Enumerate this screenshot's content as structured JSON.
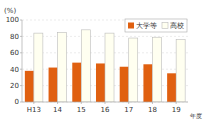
{
  "chart_data": {
    "type": "bar",
    "categories": [
      "H13",
      "14",
      "15",
      "16",
      "17",
      "18",
      "19"
    ],
    "series": [
      {
        "name": "大学等",
        "color": "#E06010",
        "values": [
          38,
          42,
          48,
          47,
          43,
          46,
          35
        ]
      },
      {
        "name": "高校",
        "color": "#FFFFF0",
        "values": [
          84,
          85,
          88,
          84,
          78,
          79,
          76
        ]
      }
    ],
    "ylabel": "(%)",
    "xlabel": "年度",
    "ylim": [
      0,
      100
    ],
    "yticks": [
      0,
      20,
      40,
      60,
      80,
      100
    ],
    "grid": true,
    "legend": "upper right"
  }
}
